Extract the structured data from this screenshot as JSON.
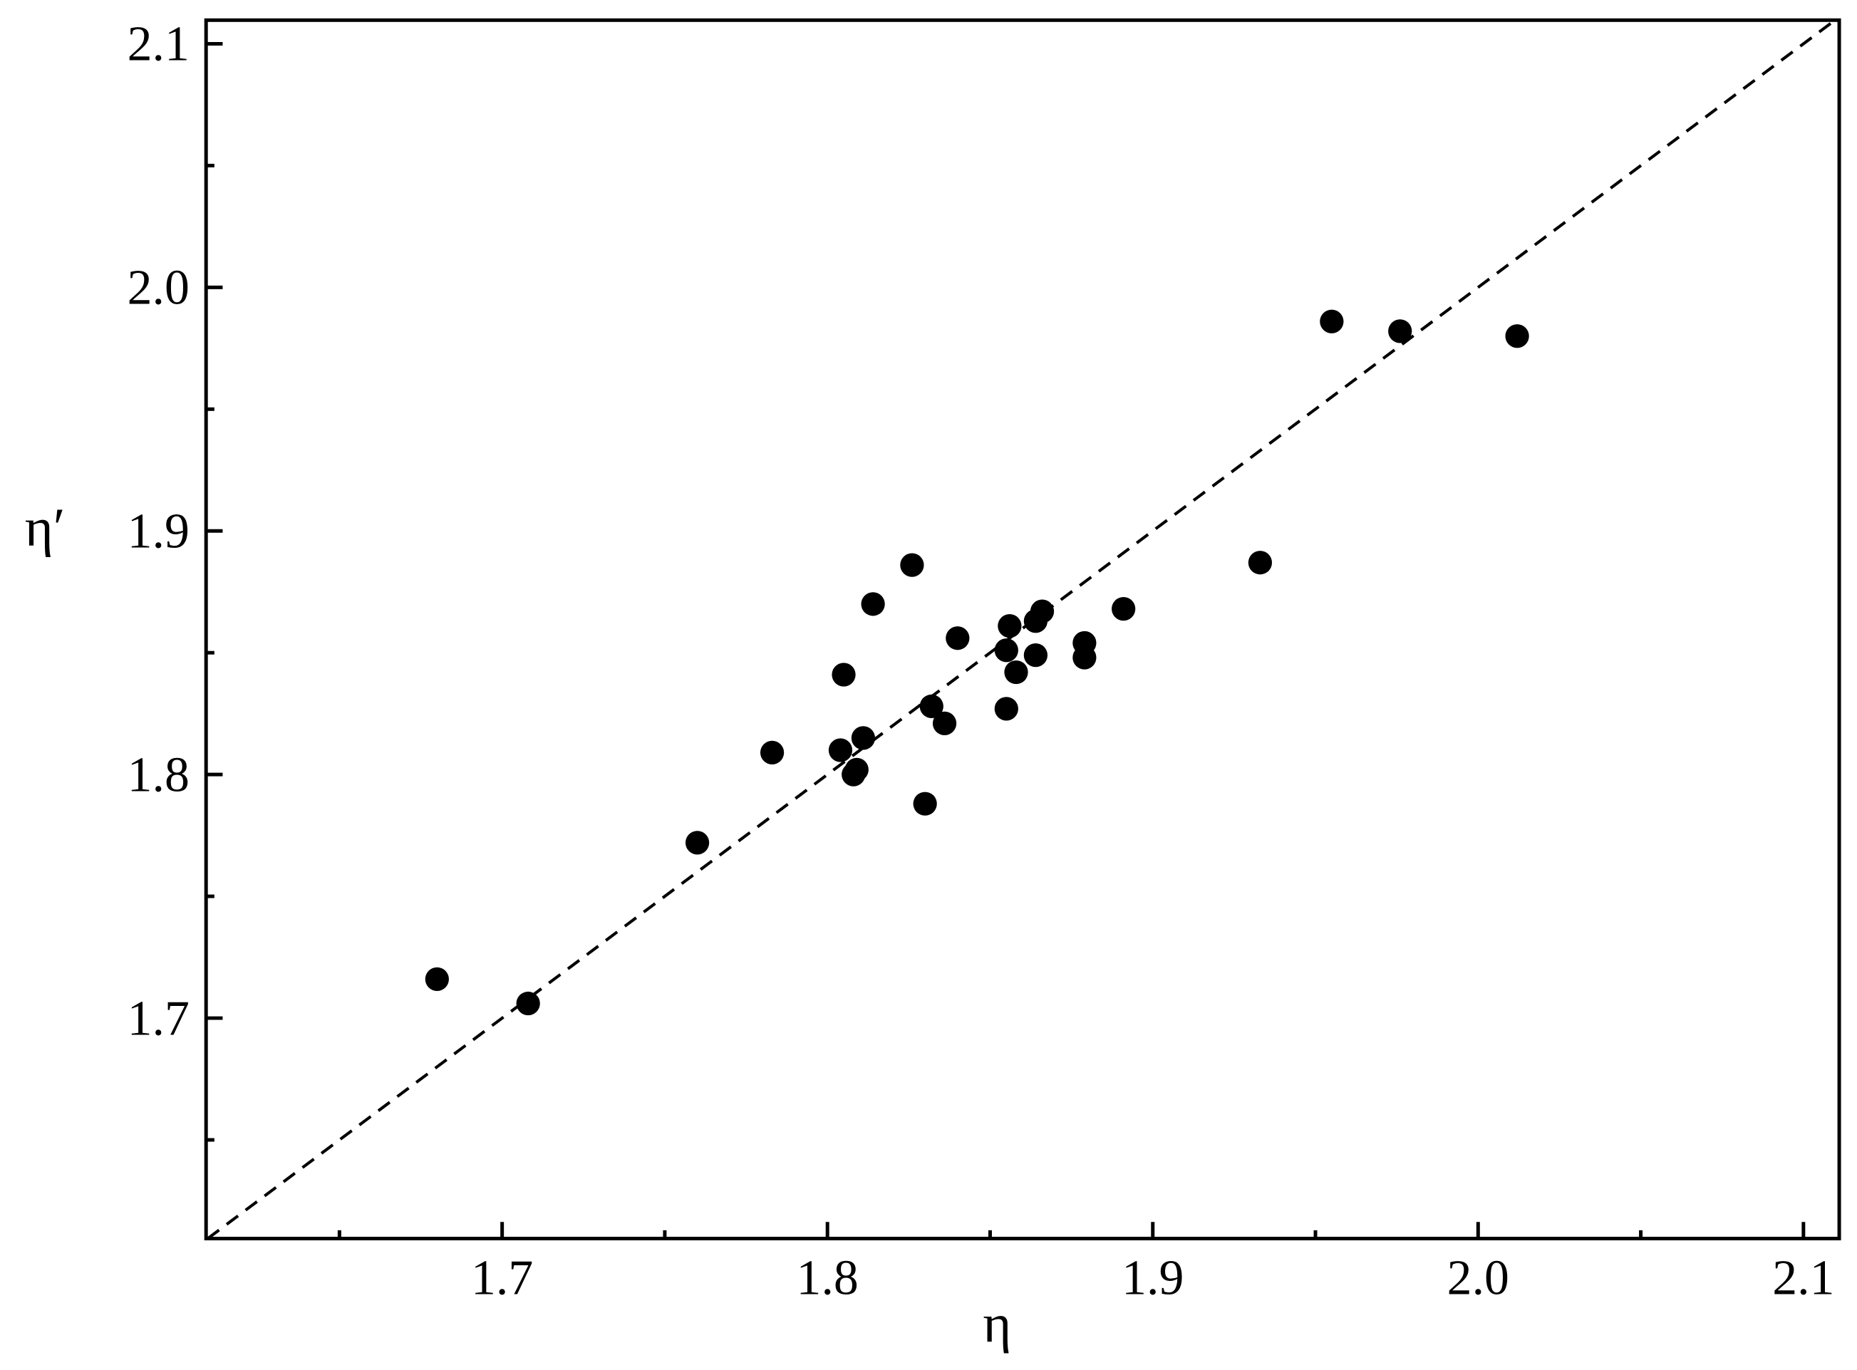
{
  "chart_data": {
    "type": "scatter",
    "xlabel": "η",
    "ylabel": "η′",
    "xlim": [
      1.609,
      2.111
    ],
    "ylim": [
      1.6095,
      2.1097
    ],
    "xticks": [
      1.7,
      1.8,
      1.9,
      {
        "value": 2.0,
        "label": "2.0"
      },
      2.1
    ],
    "yticks": [
      1.7,
      1.8,
      1.9,
      {
        "value": 2.0,
        "label": "2.0"
      },
      2.1
    ],
    "minor_xticks": [
      1.65,
      1.75,
      1.85,
      1.95,
      2.05
    ],
    "minor_yticks": [
      1.65,
      1.75,
      1.85,
      1.95,
      2.05
    ],
    "diagonal": true,
    "color": "#000000",
    "x": [
      1.68,
      1.708,
      1.76,
      1.783,
      1.804,
      1.805,
      1.808,
      1.809,
      1.811,
      1.814,
      1.826,
      1.83,
      1.832,
      1.836,
      1.84,
      1.855,
      1.855,
      1.856,
      1.858,
      1.864,
      1.864,
      1.866,
      1.879,
      1.879,
      1.891,
      1.933,
      1.955,
      1.976,
      2.012
    ],
    "values": [
      1.716,
      1.706,
      1.772,
      1.809,
      1.81,
      1.841,
      1.8,
      1.802,
      1.815,
      1.87,
      1.886,
      1.788,
      1.828,
      1.821,
      1.856,
      1.827,
      1.851,
      1.861,
      1.842,
      1.849,
      1.863,
      1.867,
      1.854,
      1.848,
      1.868,
      1.887,
      1.986,
      1.982,
      1.98
    ]
  }
}
